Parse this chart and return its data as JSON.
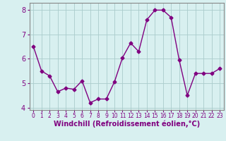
{
  "x": [
    0,
    1,
    2,
    3,
    4,
    5,
    6,
    7,
    8,
    9,
    10,
    11,
    12,
    13,
    14,
    15,
    16,
    17,
    18,
    19,
    20,
    21,
    22,
    23
  ],
  "y": [
    6.5,
    5.5,
    5.3,
    4.65,
    4.8,
    4.75,
    5.1,
    4.2,
    4.35,
    4.35,
    5.05,
    6.05,
    6.65,
    6.3,
    7.6,
    8.0,
    8.0,
    7.7,
    5.95,
    4.5,
    5.4,
    5.4,
    5.4,
    5.6
  ],
  "line_color": "#800080",
  "marker": "D",
  "marker_size": 2.5,
  "line_width": 1.0,
  "bg_color": "#d8f0f0",
  "grid_color": "#aacccc",
  "xlabel": "Windchill (Refroidissement éolien,°C)",
  "xlabel_color": "#800080",
  "tick_color": "#800080",
  "spine_color": "#888888",
  "ylim": [
    3.9,
    8.3
  ],
  "xlim": [
    -0.5,
    23.5
  ],
  "yticks": [
    4,
    5,
    6,
    7,
    8
  ],
  "xticks": [
    0,
    1,
    2,
    3,
    4,
    5,
    6,
    7,
    8,
    9,
    10,
    11,
    12,
    13,
    14,
    15,
    16,
    17,
    18,
    19,
    20,
    21,
    22,
    23
  ],
  "xtick_labels": [
    "0",
    "1",
    "2",
    "3",
    "4",
    "5",
    "6",
    "7",
    "8",
    "9",
    "10",
    "11",
    "12",
    "13",
    "14",
    "15",
    "16",
    "17",
    "18",
    "19",
    "20",
    "21",
    "22",
    "23"
  ],
  "xlabel_fontsize": 7,
  "xtick_fontsize": 5.5,
  "ytick_fontsize": 7
}
